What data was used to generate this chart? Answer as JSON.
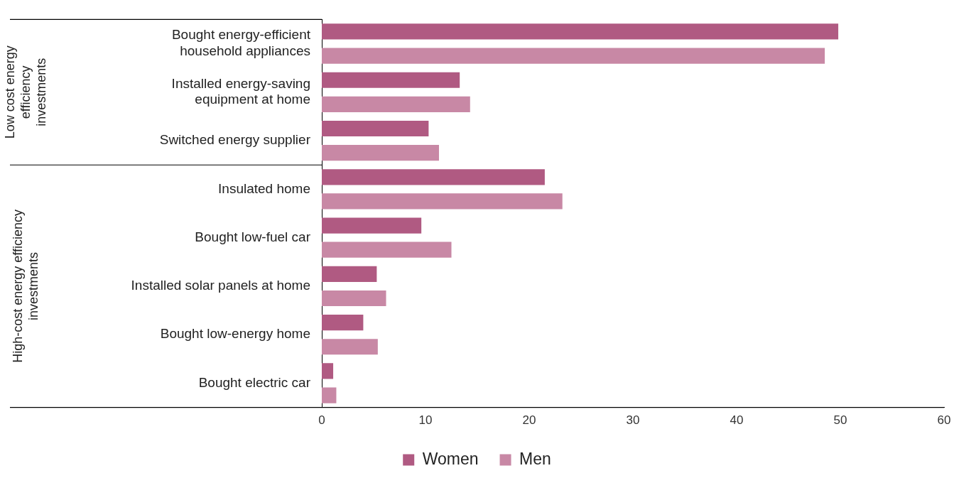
{
  "chart_data": {
    "type": "bar",
    "orientation": "horizontal",
    "categories": [
      "Bought energy-efficient household appliances",
      "Installed energy-saving equipment at home",
      "Switched energy supplier",
      "Insulated home",
      "Bought low-fuel car",
      "Installed solar panels at home",
      "Bought low-energy home",
      "Bought electric car"
    ],
    "series": [
      {
        "name": "Women",
        "color": "#b05a82",
        "values": [
          49.8,
          13.3,
          10.3,
          21.5,
          9.6,
          5.3,
          4.0,
          1.1
        ]
      },
      {
        "name": "Men",
        "color": "#c888a5",
        "values": [
          48.5,
          14.3,
          11.3,
          23.2,
          12.5,
          6.2,
          5.4,
          1.4
        ]
      }
    ],
    "xlim": [
      0,
      60
    ],
    "xticks": [
      0,
      10,
      20,
      30,
      40,
      50,
      60
    ],
    "grid": false,
    "legend": "bottom",
    "annotations": [
      "Low cost energy efficiency investments",
      "High-cost energy efficiency investments"
    ]
  }
}
